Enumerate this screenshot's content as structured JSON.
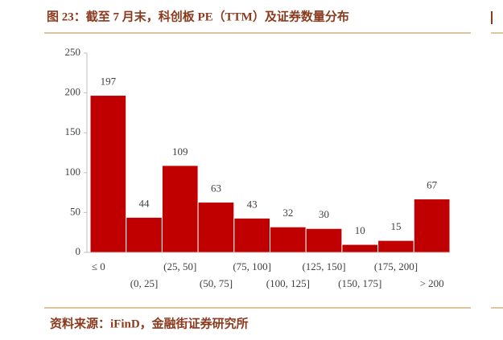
{
  "chart_data": {
    "type": "bar",
    "title": "图 23：截至 7 月末，科创板 PE（TTM）及证券数量分布",
    "source": "资料来源：iFinD，金融街证券研究所",
    "categories": [
      "≤ 0",
      "(0, 25]",
      "(25, 50]",
      "(50, 75]",
      "(75, 100]",
      "(100, 125]",
      "(125, 150]",
      "(150, 175]",
      "(175, 200]",
      "> 200"
    ],
    "values": [
      197,
      44,
      109,
      63,
      43,
      32,
      30,
      10,
      15,
      67
    ],
    "color": "#c00000",
    "ylim": [
      0,
      250
    ],
    "yticks": [
      0,
      50,
      100,
      150,
      200,
      250
    ],
    "grid": false
  }
}
